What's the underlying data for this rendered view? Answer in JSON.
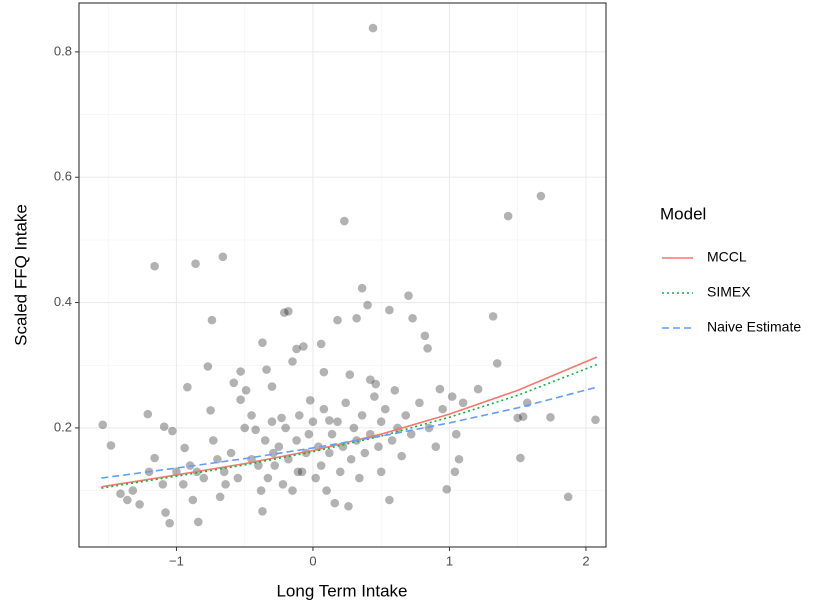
{
  "chart_data": {
    "type": "scatter",
    "xlabel": "Long Term Intake",
    "ylabel": "Scaled FFQ Intake",
    "legend_title": "Model",
    "legend": "right",
    "grid": true,
    "xlim": [
      -1.714,
      2.147
    ],
    "ylim": [
      0.01,
      0.878
    ],
    "xticks": [
      {
        "value": -1,
        "label": "−1"
      },
      0,
      1,
      2
    ],
    "yticks": [
      0.2,
      0.4,
      0.6,
      0.8
    ],
    "xminor": [
      -1.5,
      -0.5,
      0.5,
      1.5
    ],
    "yminor": [
      0.1,
      0.3,
      0.5,
      0.7
    ],
    "point_color": "#000000",
    "points": {
      "x": [
        -1.54,
        -1.48,
        -1.41,
        -1.36,
        -1.32,
        -1.27,
        -1.21,
        -1.16,
        -1.16,
        -1.09,
        -1.03,
        -1.08,
        -1.05,
        -0.94,
        -0.92,
        -0.88,
        -0.86,
        -0.84,
        -0.75,
        -0.77,
        -0.74,
        -0.73,
        -0.66,
        -0.68,
        -0.64,
        -0.58,
        -0.53,
        -0.53,
        -0.49,
        -0.45,
        -0.42,
        -0.37,
        -0.37,
        -0.34,
        -0.3,
        -0.29,
        -0.23,
        -0.21,
        -0.18,
        -0.15,
        -0.12,
        -0.11,
        -0.07,
        -0.02,
        0.06,
        0.08,
        0.12,
        0.18,
        0.23,
        0.27,
        0.32,
        0.36,
        0.4,
        0.44,
        0.42,
        0.46,
        0.5,
        0.56,
        0.56,
        0.65,
        0.7,
        0.73,
        0.82,
        0.84,
        0.93,
        0.98,
        1.02,
        1.05,
        1.04,
        1.21,
        1.32,
        1.35,
        1.43,
        1.5,
        1.52,
        1.54,
        1.57,
        1.67,
        1.74,
        1.87,
        2.07,
        -0.9,
        -0.85,
        -0.8,
        -0.7,
        -0.65,
        -0.6,
        -0.55,
        -0.5,
        -0.45,
        -0.4,
        -0.38,
        -0.35,
        -0.33,
        -0.3,
        -0.28,
        -0.25,
        -0.22,
        -0.2,
        -0.18,
        -0.15,
        -0.12,
        -0.1,
        -0.08,
        -0.05,
        -0.03,
        0,
        0.02,
        0.04,
        0.06,
        0.08,
        0.1,
        0.12,
        0.14,
        0.16,
        0.18,
        0.2,
        0.22,
        0.24,
        0.26,
        0.28,
        0.3,
        0.32,
        0.34,
        0.36,
        0.38,
        0.42,
        0.45,
        0.48,
        0.5,
        0.53,
        0.58,
        0.6,
        0.62,
        0.68,
        0.72,
        0.78,
        0.85,
        0.9,
        0.95,
        1.1,
        1.07,
        -1.2,
        -1.1,
        -1.0,
        -0.95
      ],
      "y": [
        0.205,
        0.172,
        0.095,
        0.085,
        0.1,
        0.078,
        0.222,
        0.152,
        0.458,
        0.202,
        0.195,
        0.065,
        0.048,
        0.168,
        0.265,
        0.085,
        0.462,
        0.05,
        0.228,
        0.298,
        0.372,
        0.18,
        0.473,
        0.09,
        0.11,
        0.272,
        0.29,
        0.245,
        0.26,
        0.22,
        0.197,
        0.336,
        0.067,
        0.293,
        0.266,
        0.16,
        0.216,
        0.384,
        0.386,
        0.306,
        0.326,
        0.13,
        0.33,
        0.244,
        0.334,
        0.289,
        0.212,
        0.372,
        0.53,
        0.285,
        0.375,
        0.423,
        0.396,
        0.838,
        0.277,
        0.27,
        0.13,
        0.388,
        0.085,
        0.155,
        0.411,
        0.375,
        0.347,
        0.327,
        0.262,
        0.102,
        0.25,
        0.19,
        0.13,
        0.262,
        0.378,
        0.303,
        0.538,
        0.216,
        0.152,
        0.218,
        0.24,
        0.57,
        0.217,
        0.09,
        0.213,
        0.14,
        0.13,
        0.12,
        0.15,
        0.13,
        0.16,
        0.12,
        0.2,
        0.15,
        0.14,
        0.1,
        0.18,
        0.12,
        0.21,
        0.14,
        0.17,
        0.11,
        0.2,
        0.15,
        0.1,
        0.18,
        0.22,
        0.13,
        0.16,
        0.19,
        0.21,
        0.12,
        0.17,
        0.14,
        0.23,
        0.1,
        0.16,
        0.19,
        0.08,
        0.21,
        0.13,
        0.17,
        0.24,
        0.075,
        0.15,
        0.2,
        0.18,
        0.12,
        0.22,
        0.16,
        0.19,
        0.25,
        0.17,
        0.21,
        0.23,
        0.18,
        0.26,
        0.2,
        0.22,
        0.19,
        0.24,
        0.2,
        0.17,
        0.23,
        0.24,
        0.15,
        0.13,
        0.11,
        0.13,
        0.11
      ]
    },
    "series": [
      {
        "name": "MCCL",
        "color": "#F8766D",
        "linetype": "solid",
        "x": [
          -1.55,
          -1,
          -0.5,
          0,
          0.5,
          1,
          1.5,
          2.08
        ],
        "values": [
          0.106,
          0.125,
          0.143,
          0.164,
          0.19,
          0.222,
          0.26,
          0.313
        ]
      },
      {
        "name": "SIMEX",
        "color": "#00BA38",
        "linetype": "dotted",
        "x": [
          -1.55,
          -1,
          -0.5,
          0,
          0.5,
          1,
          1.5,
          2.08
        ],
        "values": [
          0.104,
          0.123,
          0.141,
          0.162,
          0.187,
          0.217,
          0.252,
          0.301
        ]
      },
      {
        "name": "Naive Estimate",
        "color": "#619CFF",
        "linetype": "dashed",
        "x": [
          -1.55,
          -1,
          -0.5,
          0,
          0.5,
          1,
          1.5,
          2.08
        ],
        "values": [
          0.12,
          0.136,
          0.151,
          0.168,
          0.187,
          0.208,
          0.232,
          0.265
        ]
      }
    ]
  }
}
